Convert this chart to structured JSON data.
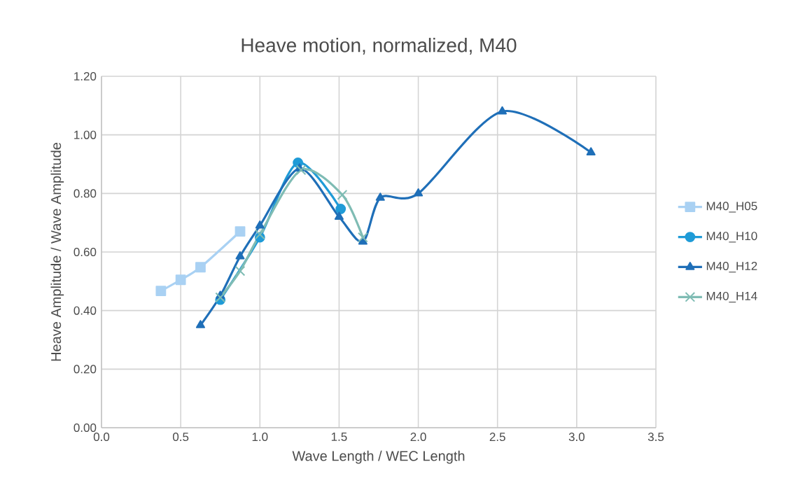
{
  "chart_data": {
    "type": "line",
    "title": "Heave motion, normalized, M40",
    "xlabel": "Wave Length / WEC Length",
    "ylabel": "Heave Amplitude / Wave Amplitude",
    "xlim": [
      0,
      3.5
    ],
    "ylim": [
      0,
      1.2
    ],
    "xticks": [
      {
        "value": 0,
        "label": "0.0"
      },
      {
        "value": 0.5,
        "label": "0.5"
      },
      {
        "value": 1,
        "label": "1.0"
      },
      {
        "value": 1.5,
        "label": "1.5"
      },
      {
        "value": 2,
        "label": "2.0"
      },
      {
        "value": 2.5,
        "label": "2.5"
      },
      {
        "value": 3,
        "label": "3.0"
      },
      {
        "value": 3.5,
        "label": "3.5"
      }
    ],
    "yticks": [
      {
        "value": 0,
        "label": "0.00"
      },
      {
        "value": 0.2,
        "label": "0.20"
      },
      {
        "value": 0.4,
        "label": "0.40"
      },
      {
        "value": 0.6,
        "label": "0.60"
      },
      {
        "value": 0.8,
        "label": "0.80"
      },
      {
        "value": 1,
        "label": "1.00"
      },
      {
        "value": 1.2,
        "label": "1.20"
      }
    ],
    "grid": true,
    "legend": "right",
    "line_style": "solid",
    "series": [
      {
        "name": "M40_H05",
        "color": "#a9d1f3",
        "marker": "square",
        "x": [
          0.375,
          0.5,
          0.625,
          0.875
        ],
        "values": [
          0.467,
          0.505,
          0.548,
          0.67
        ]
      },
      {
        "name": "M40_H10",
        "color": "#1f9bd7",
        "marker": "circle",
        "x": [
          0.75,
          1.0,
          1.24,
          1.51
        ],
        "values": [
          0.437,
          0.65,
          0.905,
          0.747
        ]
      },
      {
        "name": "M40_H12",
        "color": "#1f6fb8",
        "marker": "triangle",
        "x": [
          0.625,
          0.75,
          0.875,
          1.0,
          1.25,
          1.5,
          1.65,
          1.76,
          2.0,
          2.53,
          3.09
        ],
        "values": [
          0.35,
          0.45,
          0.585,
          0.69,
          0.885,
          0.72,
          0.635,
          0.785,
          0.8,
          1.08,
          0.94
        ]
      },
      {
        "name": "M40_H14",
        "color": "#7fbcb4",
        "marker": "cross",
        "x": [
          0.75,
          0.875,
          1.0,
          1.26,
          1.52,
          1.65
        ],
        "values": [
          0.445,
          0.535,
          0.66,
          0.88,
          0.795,
          0.65
        ]
      }
    ]
  }
}
